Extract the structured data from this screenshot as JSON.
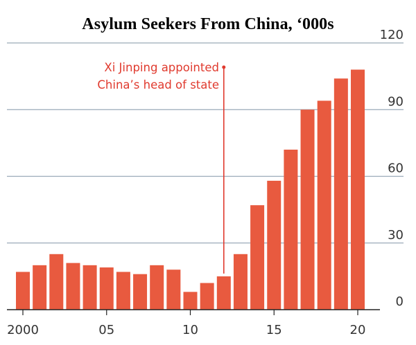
{
  "colors": {
    "bar": "#e85a3f",
    "gridline": "#9aaab8",
    "baseline": "#222222",
    "annotation": "#e03a2e",
    "text": "#333333"
  },
  "chart_data": {
    "type": "bar",
    "title": "Asylum Seekers From China, ‘000s",
    "xlabel": "",
    "ylabel": "",
    "ylim": [
      0,
      120
    ],
    "yticks": [
      "120",
      "90",
      "60",
      "30",
      "0"
    ],
    "xtick_labels": [
      "2000",
      "05",
      "10",
      "15",
      "20"
    ],
    "grid": true,
    "y_axis_side": "right",
    "categories": [
      "2000",
      "2001",
      "2002",
      "2003",
      "2004",
      "2005",
      "2006",
      "2007",
      "2008",
      "2009",
      "2010",
      "2011",
      "2012",
      "2013",
      "2014",
      "2015",
      "2016",
      "2017",
      "2018",
      "2019",
      "2020"
    ],
    "values": [
      17,
      20,
      25,
      21,
      20,
      19,
      17,
      16,
      20,
      18,
      8,
      12,
      15,
      25,
      47,
      58,
      72,
      90,
      94,
      104,
      108
    ],
    "annotation": {
      "lines": [
        "Xi Jinping appointed",
        "China’s head of state"
      ],
      "category": "2012"
    }
  }
}
